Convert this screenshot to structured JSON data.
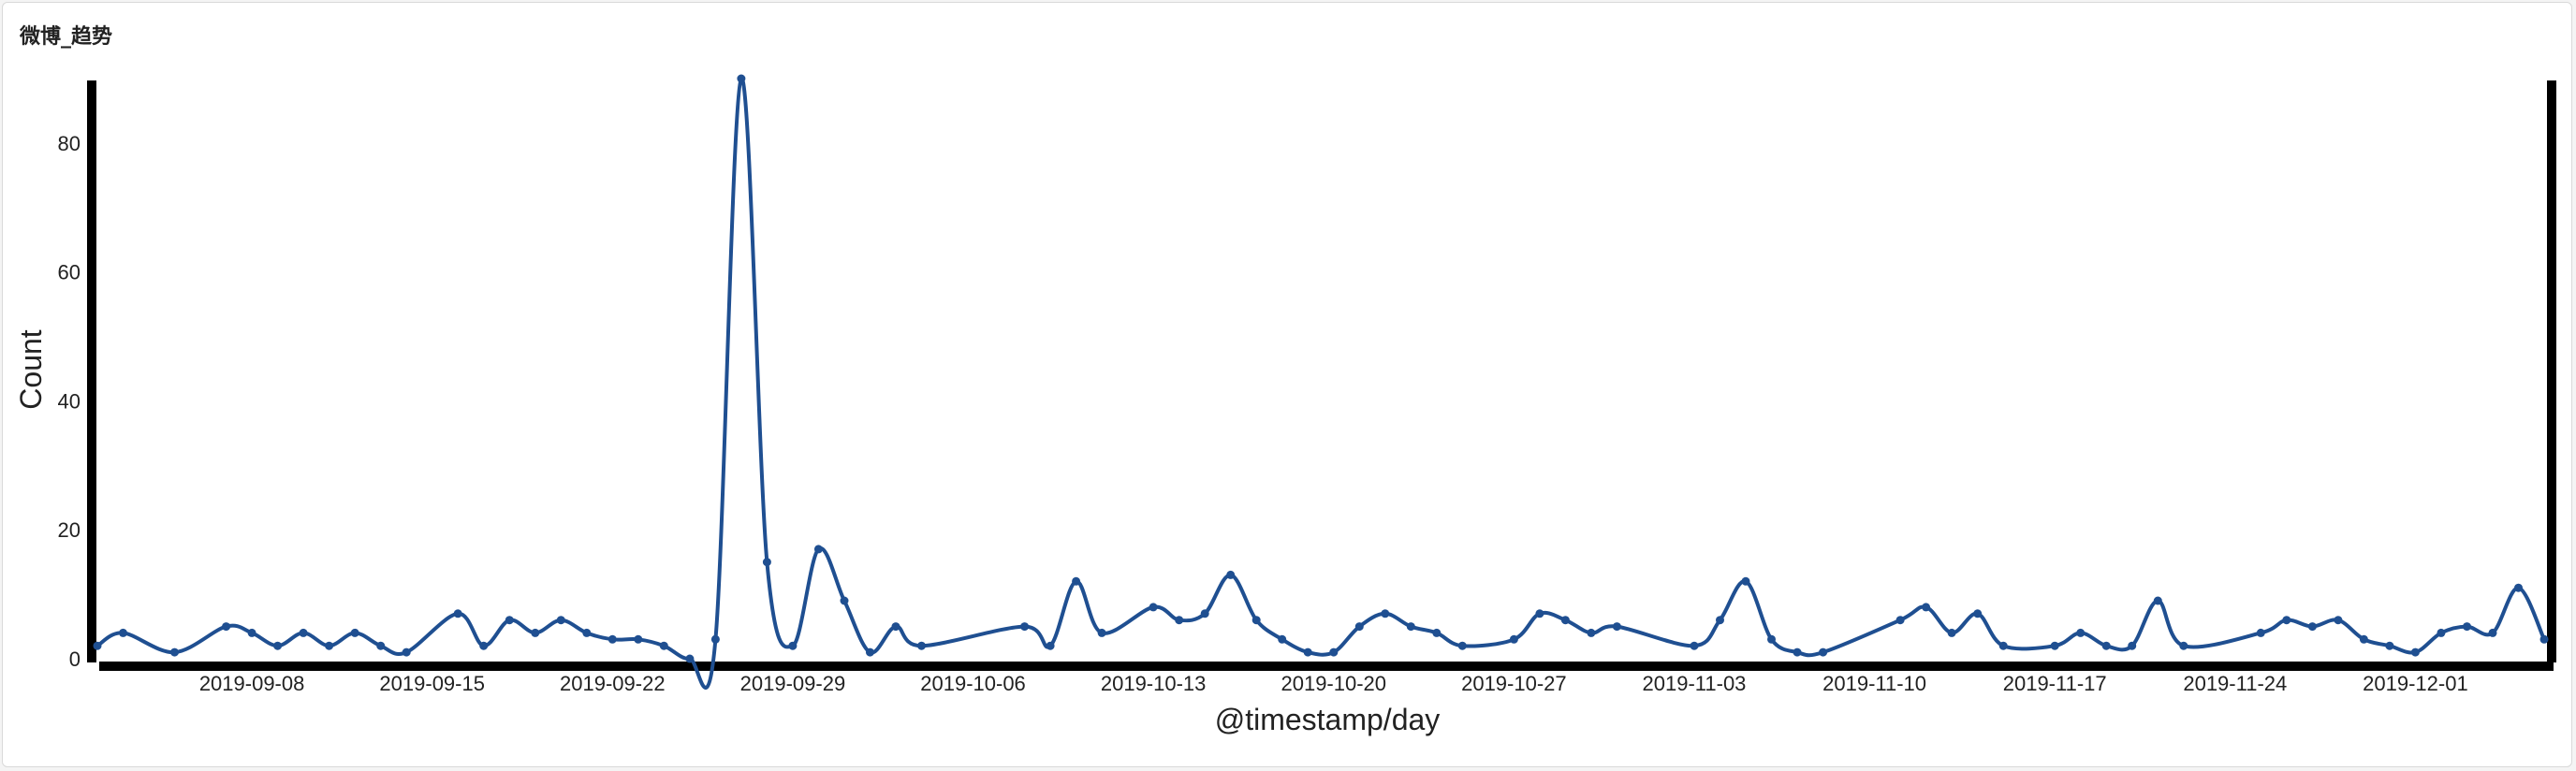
{
  "panel": {
    "title": "微博_趋势"
  },
  "chart_data": {
    "type": "line",
    "title": "",
    "xlabel": "@timestamp/day",
    "ylabel": "Count",
    "x_tick_labels": [
      "2019-09-08",
      "2019-09-15",
      "2019-09-22",
      "2019-09-29",
      "2019-10-06",
      "2019-10-13",
      "2019-10-20",
      "2019-10-27",
      "2019-11-03",
      "2019-11-10",
      "2019-11-17",
      "2019-11-24",
      "2019-12-01"
    ],
    "y_tick_labels": [
      "0",
      "20",
      "40",
      "60",
      "80"
    ],
    "ylim": [
      0,
      90
    ],
    "xlim": [
      "2019-09-02",
      "2019-12-06"
    ],
    "line_color": "#1f4f91",
    "grid": false,
    "series": [
      {
        "x": [
          "2019-09-02",
          "2019-09-03",
          "2019-09-05",
          "2019-09-07",
          "2019-09-08",
          "2019-09-09",
          "2019-09-10",
          "2019-09-11",
          "2019-09-12",
          "2019-09-13",
          "2019-09-14",
          "2019-09-16",
          "2019-09-17",
          "2019-09-18",
          "2019-09-19",
          "2019-09-20",
          "2019-09-21",
          "2019-09-22",
          "2019-09-23",
          "2019-09-24",
          "2019-09-25",
          "2019-09-26",
          "2019-09-27",
          "2019-09-28",
          "2019-09-29",
          "2019-09-30",
          "2019-10-01",
          "2019-10-02",
          "2019-10-03",
          "2019-10-04",
          "2019-10-08",
          "2019-10-09",
          "2019-10-10",
          "2019-10-11",
          "2019-10-13",
          "2019-10-14",
          "2019-10-15",
          "2019-10-16",
          "2019-10-17",
          "2019-10-18",
          "2019-10-19",
          "2019-10-20",
          "2019-10-21",
          "2019-10-22",
          "2019-10-23",
          "2019-10-24",
          "2019-10-25",
          "2019-10-27",
          "2019-10-28",
          "2019-10-29",
          "2019-10-30",
          "2019-10-31",
          "2019-11-03",
          "2019-11-04",
          "2019-11-05",
          "2019-11-06",
          "2019-11-07",
          "2019-11-08",
          "2019-11-11",
          "2019-11-12",
          "2019-11-13",
          "2019-11-14",
          "2019-11-15",
          "2019-11-17",
          "2019-11-18",
          "2019-11-19",
          "2019-11-20",
          "2019-11-21",
          "2019-11-22",
          "2019-11-25",
          "2019-11-26",
          "2019-11-27",
          "2019-11-28",
          "2019-11-29",
          "2019-11-30",
          "2019-12-01",
          "2019-12-02",
          "2019-12-03",
          "2019-12-04",
          "2019-12-05",
          "2019-12-06"
        ],
        "values": [
          2,
          4,
          1,
          5,
          4,
          2,
          4,
          2,
          4,
          2,
          1,
          7,
          2,
          6,
          4,
          6,
          4,
          3,
          3,
          2,
          0,
          3,
          90,
          15,
          2,
          17,
          9,
          1,
          5,
          2,
          5,
          2,
          12,
          4,
          8,
          6,
          7,
          13,
          6,
          3,
          1,
          1,
          5,
          7,
          5,
          4,
          2,
          3,
          7,
          6,
          4,
          5,
          2,
          6,
          12,
          3,
          1,
          1,
          6,
          8,
          4,
          7,
          2,
          2,
          4,
          2,
          2,
          9,
          2,
          4,
          6,
          5,
          6,
          3,
          2,
          1,
          4,
          5,
          4,
          11,
          3
        ]
      }
    ]
  }
}
